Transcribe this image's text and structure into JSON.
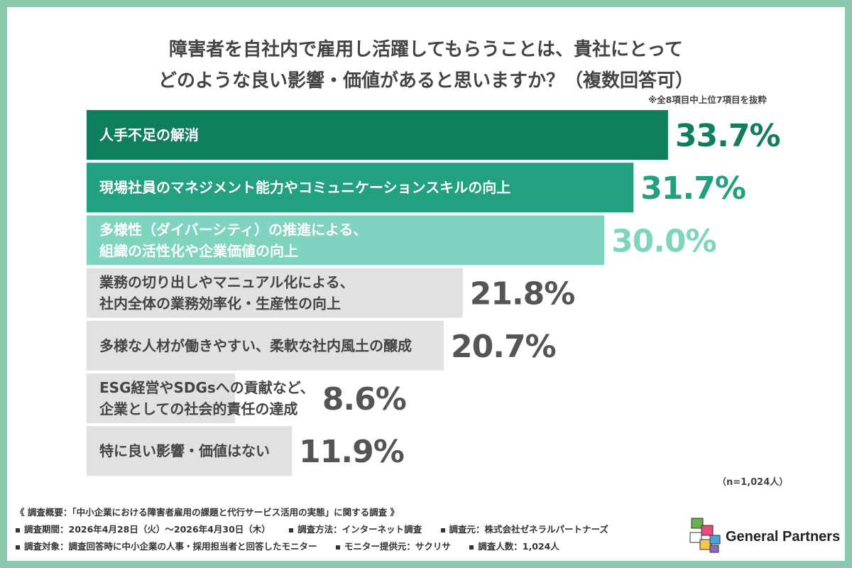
{
  "title": {
    "line1": "障害者を自社内で雇用し活躍してもらうことは、貴社にとって",
    "line2": "どのような良い影響・価値があると思いますか？（複数回答可）"
  },
  "note": "※全8項目中上位7項目を抜粋",
  "sample_note": "（n=1,024人）",
  "chart_data": {
    "type": "bar",
    "orientation": "horizontal",
    "title": "障害者を自社内で雇用し活躍してもらうことは、貴社にとってどのような良い影響・価値があると思いますか？（複数回答可）",
    "unit": "%",
    "xlim": [
      0,
      40
    ],
    "categories": [
      [
        "人手不足の解消"
      ],
      [
        "現場社員のマネジメント能力やコミュニケーションスキルの向上"
      ],
      [
        "多様性（ダイバーシティ）の推進による、",
        "組織の活性化や企業価値の向上"
      ],
      [
        "業務の切り出しやマニュアル化による、",
        "社内全体の業務効率化・生産性の向上"
      ],
      [
        "多様な人材が働きやすい、柔軟な社内風土の醸成"
      ],
      [
        "ESG経営やSDGsへの貢献など、",
        "企業としての社会的責任の達成"
      ],
      [
        "特に良い影響・価値はない"
      ]
    ],
    "values": [
      33.7,
      31.7,
      30.0,
      21.8,
      20.7,
      8.6,
      11.9
    ],
    "value_labels": [
      "33.7%",
      "31.7%",
      "30.0%",
      "21.8%",
      "20.7%",
      "8.6%",
      "11.9%"
    ],
    "bar_colors": [
      "#0f7e5e",
      "#23a07f",
      "#7fd4c0",
      "#e2e0e2",
      "#e2e0e2",
      "#e2e0e2",
      "#e2e0e2"
    ],
    "label_colors": [
      "#ffffff",
      "#ffffff",
      "#ffffff",
      "#444444",
      "#444444",
      "#444444",
      "#444444"
    ],
    "value_colors": [
      "#0f7e5e",
      "#23a07f",
      "#7fd4c0",
      "#555555",
      "#555555",
      "#555555",
      "#555555"
    ]
  },
  "footer": {
    "heading": "《 調査概要：「中小企業における障害者雇用の課題と代行サービス活用の実態」に関する調査 》",
    "row1": [
      "調査期間：2026年4月28日（火）〜2026年4月30日（木）",
      "調査方法：インターネット調査",
      "調査元：株式会社ゼネラルパートナーズ"
    ],
    "row2": [
      "調査対象：調査回答時に中小企業の人事・採用担当者と回答したモニター",
      "モニター提供元：サクリサ",
      "調査人数：1,024人"
    ]
  },
  "logo": {
    "text": "General Partners",
    "colors": [
      "#6ab04c",
      "#e84a7a",
      "#f2c94c",
      "#4aa3df",
      "#8e6bbf"
    ],
    "icon": "general-partners-logo-icon"
  }
}
